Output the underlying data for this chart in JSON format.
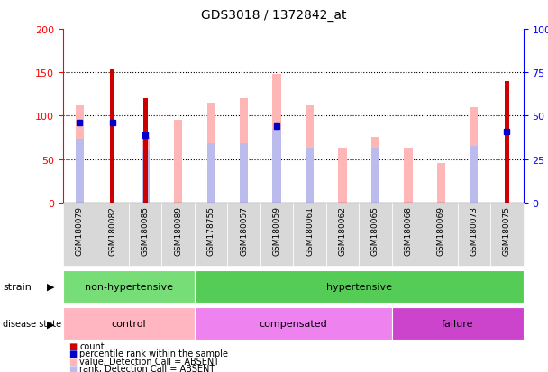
{
  "title": "GDS3018 / 1372842_at",
  "samples": [
    "GSM180079",
    "GSM180082",
    "GSM180085",
    "GSM180089",
    "GSM178755",
    "GSM180057",
    "GSM180059",
    "GSM180061",
    "GSM180062",
    "GSM180065",
    "GSM180068",
    "GSM180069",
    "GSM180073",
    "GSM180075"
  ],
  "value_absent": [
    112,
    0,
    75,
    95,
    115,
    120,
    148,
    112,
    63,
    75,
    63,
    45,
    110,
    0
  ],
  "rank_absent": [
    73,
    0,
    60,
    0,
    68,
    68,
    85,
    63,
    0,
    63,
    0,
    0,
    65,
    0
  ],
  "count": [
    0,
    153,
    120,
    0,
    0,
    0,
    0,
    0,
    0,
    0,
    0,
    0,
    0,
    140
  ],
  "percentile_rank": [
    46,
    46,
    39,
    0,
    0,
    0,
    44,
    0,
    0,
    0,
    0,
    0,
    0,
    41
  ],
  "strain_groups": [
    {
      "label": "non-hypertensive",
      "start": 0,
      "end": 4,
      "color": "#77DD77"
    },
    {
      "label": "hypertensive",
      "start": 4,
      "end": 14,
      "color": "#55CC55"
    }
  ],
  "disease_groups": [
    {
      "label": "control",
      "start": 0,
      "end": 4,
      "color": "#FFB6C1"
    },
    {
      "label": "compensated",
      "start": 4,
      "end": 10,
      "color": "#EE82EE"
    },
    {
      "label": "failure",
      "start": 10,
      "end": 14,
      "color": "#CC44CC"
    }
  ],
  "ylim_left": [
    0,
    200
  ],
  "ylim_right": [
    0,
    100
  ],
  "yticks_left": [
    0,
    50,
    100,
    150,
    200
  ],
  "yticks_right": [
    0,
    25,
    50,
    75,
    100
  ],
  "ytick_labels_right": [
    "0",
    "25",
    "50",
    "75",
    "100%"
  ],
  "color_count": "#CC0000",
  "color_percentile": "#0000CC",
  "color_value_absent": "#FFB6B6",
  "color_rank_absent": "#BBBBEE",
  "background": "#FFFFFF",
  "xticklabel_bg": "#D8D8D8"
}
